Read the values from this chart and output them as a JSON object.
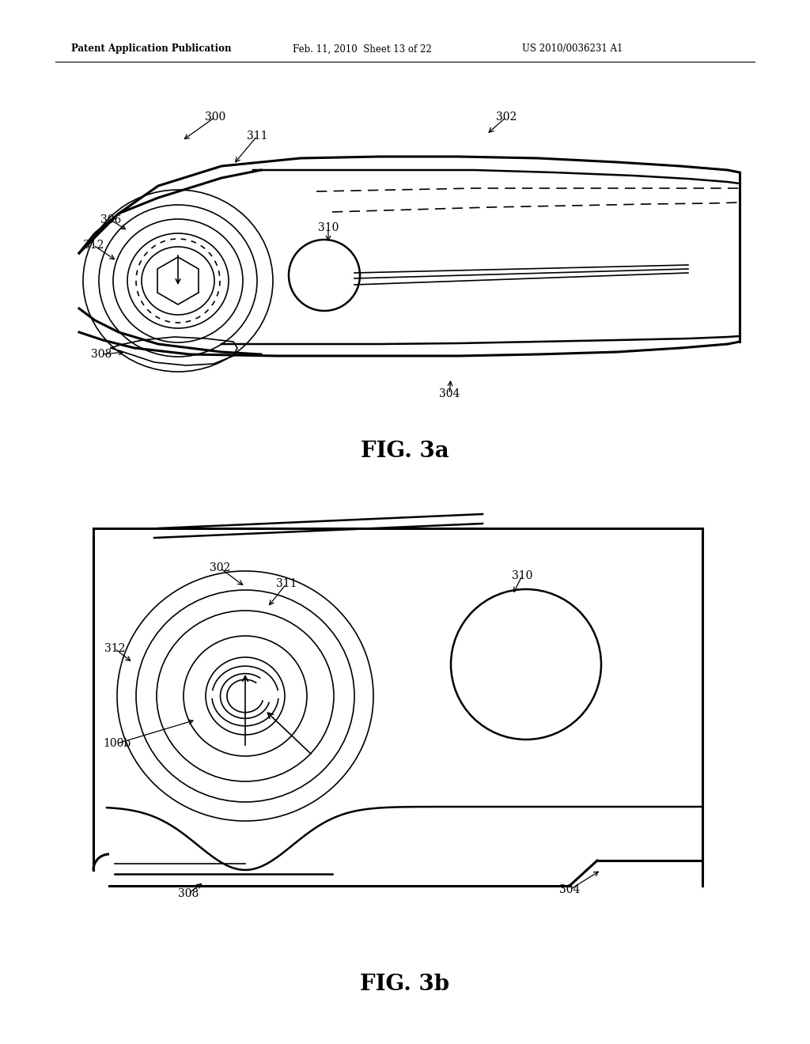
{
  "bg_color": "#ffffff",
  "line_color": "#000000",
  "fig_width": 10.24,
  "fig_height": 13.2,
  "header_text1": "Patent Application Publication",
  "header_text2": "Feb. 11, 2010  Sheet 13 of 22",
  "header_text3": "US 2010/0036231 A1",
  "fig3a_label": "FIG. 3a",
  "fig3b_label": "FIG. 3b"
}
